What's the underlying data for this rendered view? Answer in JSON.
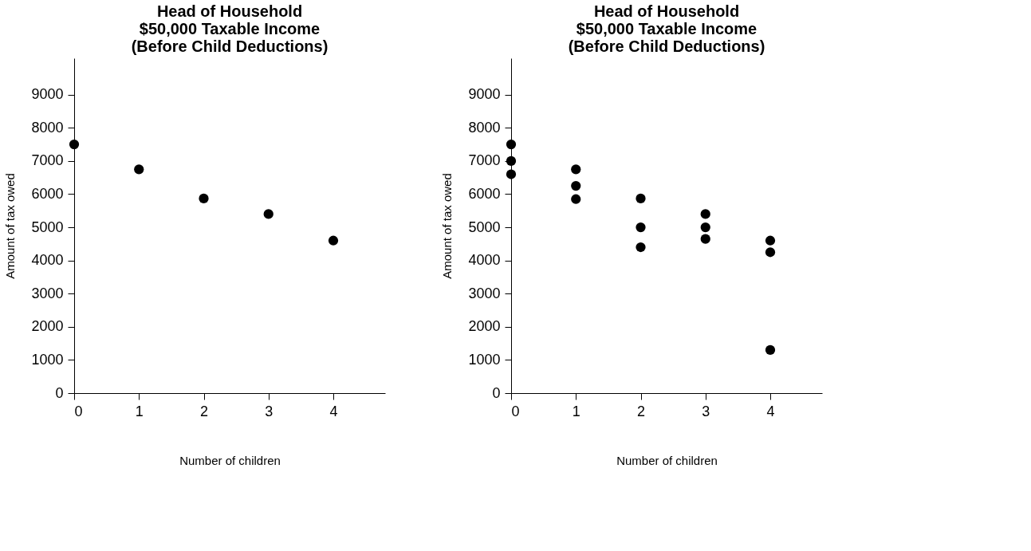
{
  "chart_data": [
    {
      "type": "scatter",
      "title": "Head of Household\n$50,000 Taxable Income\n(Before Child Deductions)",
      "xlabel": "Number of children",
      "ylabel": "Amount of tax owed",
      "xlim": [
        0,
        4.8
      ],
      "ylim": [
        0,
        10100
      ],
      "xticks": [
        0,
        1,
        2,
        3,
        4
      ],
      "yticks": [
        0,
        1000,
        2000,
        3000,
        4000,
        5000,
        6000,
        7000,
        8000,
        9000
      ],
      "grid": false,
      "marker": "circle",
      "series": [
        {
          "color": "#000000",
          "x": [
            0,
            1,
            2,
            3,
            4
          ],
          "values": [
            7500,
            6750,
            5870,
            5400,
            4600
          ]
        }
      ]
    },
    {
      "type": "scatter",
      "title": "Head of Household\n$50,000 Taxable Income\n(Before Child Deductions)",
      "xlabel": "Number of children",
      "ylabel": "Amount of tax owed",
      "xlim": [
        0,
        4.8
      ],
      "ylim": [
        0,
        10100
      ],
      "xticks": [
        0,
        1,
        2,
        3,
        4
      ],
      "yticks": [
        0,
        1000,
        2000,
        3000,
        4000,
        5000,
        6000,
        7000,
        8000,
        9000
      ],
      "grid": false,
      "marker": "circle",
      "series": [
        {
          "color": "#000000",
          "x": [
            0,
            0,
            0,
            1,
            1,
            1,
            2,
            2,
            2,
            3,
            3,
            3,
            4,
            4,
            4
          ],
          "values": [
            7500,
            7000,
            6600,
            6750,
            6250,
            5850,
            5870,
            5000,
            4400,
            5400,
            5000,
            4650,
            4600,
            4250,
            1300
          ]
        }
      ]
    }
  ]
}
